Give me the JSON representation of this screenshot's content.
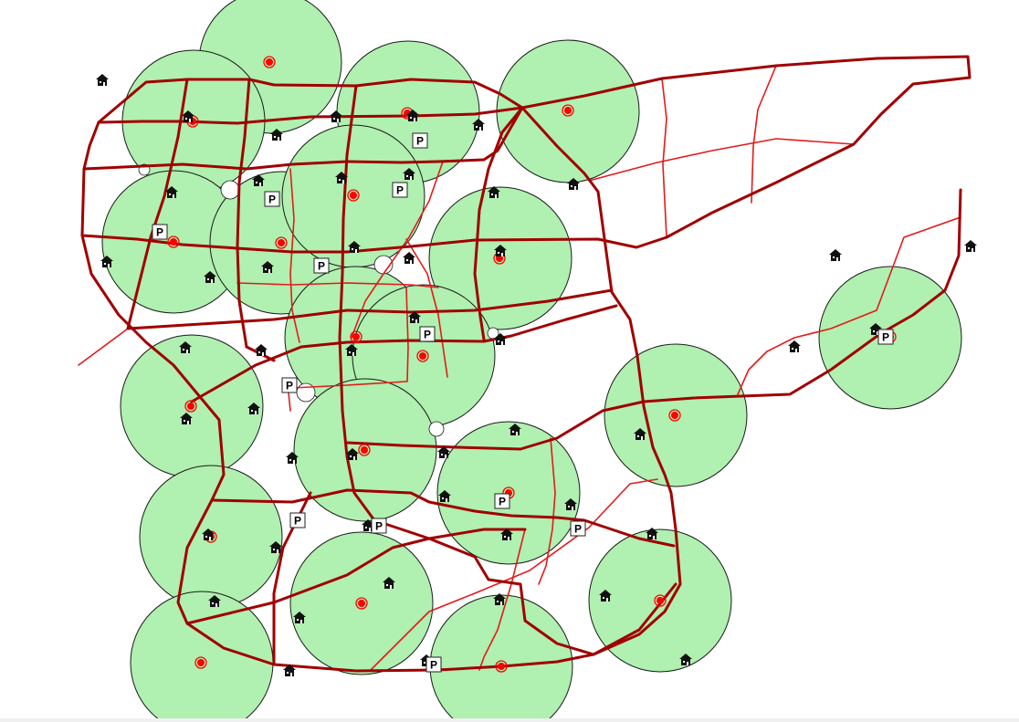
{
  "map": {
    "colors": {
      "buffer_fill": "#b0f0b0",
      "major_road": "#a00000",
      "minor_road": "#e41a1a",
      "station_marker": "#ff0000",
      "house_icon": "#111111"
    },
    "parking_label": "P",
    "layers": {
      "service_buffers": "circle",
      "stations": "red-dot-icon",
      "houses": "house-icon",
      "parking": "parking-sign-icon"
    }
  }
}
